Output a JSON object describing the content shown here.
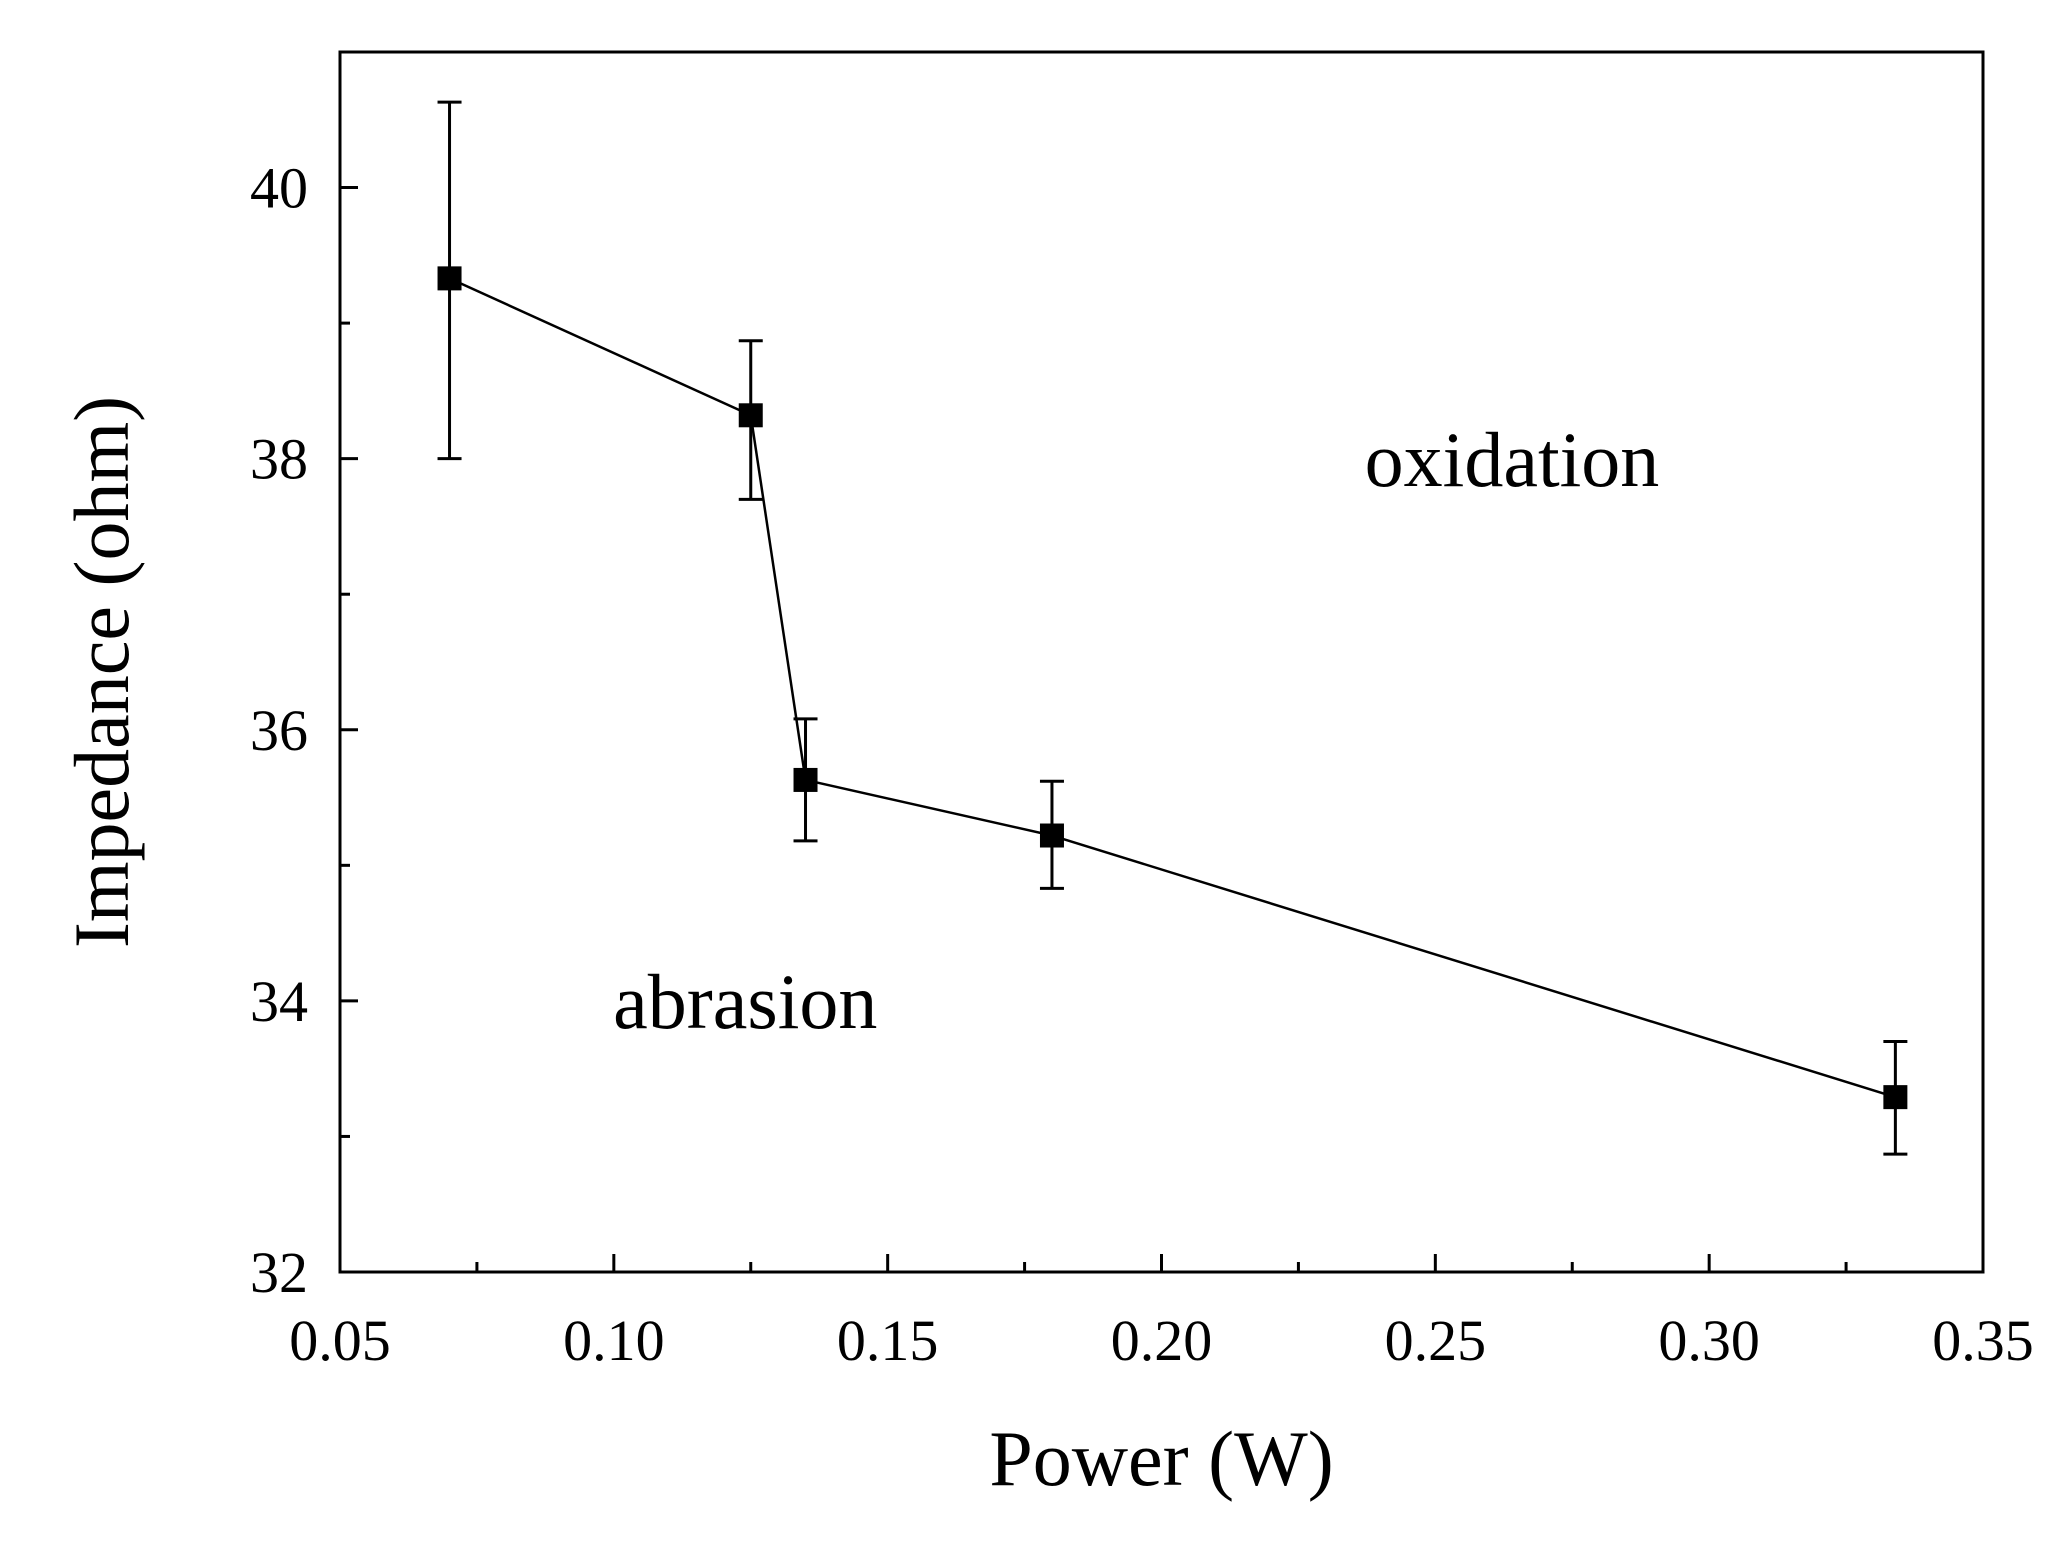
{
  "chart_data": {
    "type": "scatter",
    "title": "",
    "xlabel": "Power (W)",
    "ylabel": "Impedance (ohm)",
    "xlim": [
      0.05,
      0.35
    ],
    "ylim": [
      32,
      41
    ],
    "xticks": [
      "0.05",
      "0.10",
      "0.15",
      "0.20",
      "0.25",
      "0.30",
      "0.35"
    ],
    "yticks": [
      "32",
      "34",
      "36",
      "38",
      "40"
    ],
    "xtick_values": [
      0.05,
      0.1,
      0.15,
      0.2,
      0.25,
      0.3,
      0.35
    ],
    "ytick_values": [
      32,
      34,
      36,
      38,
      40
    ],
    "x_minor_tick_values": [
      0.075,
      0.125,
      0.175,
      0.225,
      0.275,
      0.325
    ],
    "y_minor_tick_values": [
      33,
      35,
      37,
      39,
      41
    ],
    "grid": false,
    "legend": "none",
    "series": [
      {
        "marker": "square",
        "line": true,
        "color": "#000000",
        "points": [
          {
            "x": 0.07,
            "y": 39.33,
            "err_low": 38.0,
            "err_high": 40.63
          },
          {
            "x": 0.125,
            "y": 38.32,
            "err_low": 37.7,
            "err_high": 38.87
          },
          {
            "x": 0.135,
            "y": 35.63,
            "err_low": 35.18,
            "err_high": 36.08
          },
          {
            "x": 0.18,
            "y": 35.22,
            "err_low": 34.83,
            "err_high": 35.62
          },
          {
            "x": 0.334,
            "y": 33.29,
            "err_low": 32.87,
            "err_high": 33.7
          }
        ]
      }
    ],
    "annotations": [
      {
        "text": "oxidation",
        "x": 0.264,
        "y": 37.8
      },
      {
        "text": "abrasion",
        "x": 0.124,
        "y": 33.8
      }
    ]
  }
}
